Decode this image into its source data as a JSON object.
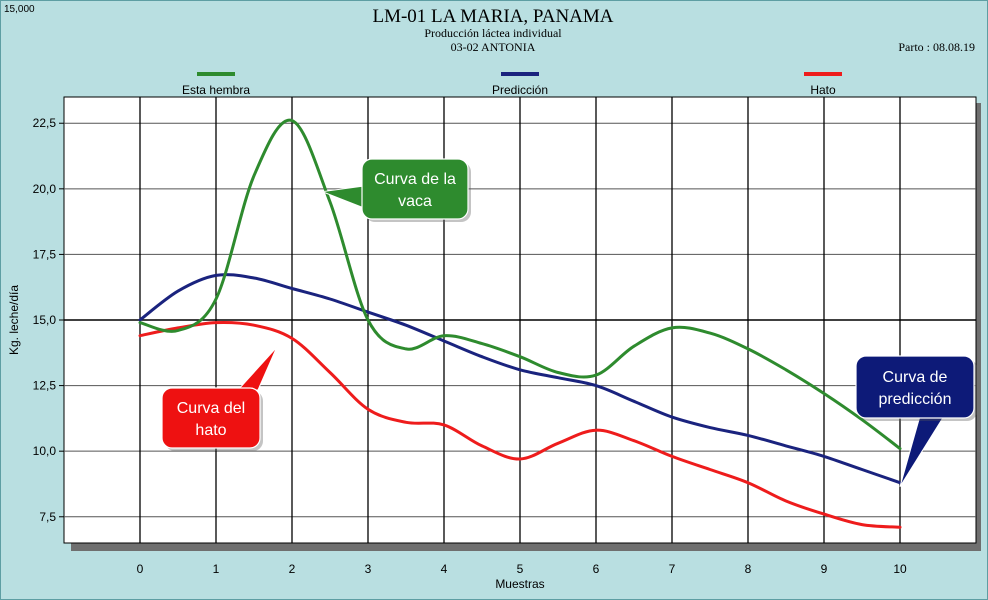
{
  "corner_value": "15,000",
  "title": "LM-01  LA MARIA, PANAMA",
  "subtitle": "Producción láctea individual",
  "animal": "03-02 ANTONIA",
  "parto": "Parto : 08.08.19",
  "chart_data": {
    "type": "line",
    "xlabel": "Muestras",
    "ylabel": "Kg. leche/día",
    "x": [
      0,
      1,
      2,
      3,
      4,
      5,
      6,
      7,
      8,
      9,
      10
    ],
    "xlim": [
      -1,
      11
    ],
    "ylim": [
      6.5,
      23.5
    ],
    "y_ticks": [
      7.5,
      10.0,
      12.5,
      15.0,
      17.5,
      20.0,
      22.5
    ],
    "y_tick_labels": [
      "7,5",
      "10,0",
      "12,5",
      "15,0",
      "17,5",
      "20,0",
      "22,5"
    ],
    "x_tick_labels": [
      "0",
      "1",
      "2",
      "3",
      "4",
      "5",
      "6",
      "7",
      "8",
      "9",
      "10"
    ],
    "grid": true,
    "legend_position": "top",
    "series": [
      {
        "name": "Esta hembra",
        "color": "#2e8b2e",
        "x": [
          0,
          0.5,
          1,
          1.5,
          2,
          2.5,
          3,
          3.5,
          4,
          4.5,
          5,
          5.5,
          6,
          6.5,
          7,
          7.5,
          8,
          8.5,
          9,
          9.5,
          10
        ],
        "values": [
          14.9,
          14.6,
          15.8,
          20.5,
          22.6,
          19.5,
          15.0,
          13.9,
          14.4,
          14.1,
          13.6,
          13.0,
          12.9,
          14.0,
          14.7,
          14.5,
          13.9,
          13.1,
          12.2,
          11.2,
          10.1
        ]
      },
      {
        "name": "Predicción",
        "color": "#1a237e",
        "x": [
          0,
          0.5,
          1,
          1.5,
          2,
          2.5,
          3,
          3.5,
          4,
          4.5,
          5,
          5.5,
          6,
          6.5,
          7,
          7.5,
          8,
          8.5,
          9,
          9.5,
          10
        ],
        "values": [
          15.0,
          16.1,
          16.7,
          16.6,
          16.2,
          15.8,
          15.3,
          14.8,
          14.2,
          13.6,
          13.1,
          12.8,
          12.5,
          11.9,
          11.3,
          10.9,
          10.6,
          10.2,
          9.8,
          9.3,
          8.8
        ]
      },
      {
        "name": "Hato",
        "color": "#ee1c1c",
        "x": [
          0,
          0.5,
          1,
          1.5,
          2,
          2.5,
          3,
          3.5,
          4,
          4.5,
          5,
          5.5,
          6,
          6.5,
          7,
          7.5,
          8,
          8.5,
          9,
          9.5,
          10
        ],
        "values": [
          14.4,
          14.7,
          14.9,
          14.8,
          14.3,
          13.0,
          11.6,
          11.1,
          11.0,
          10.2,
          9.7,
          10.3,
          10.8,
          10.4,
          9.8,
          9.3,
          8.8,
          8.1,
          7.6,
          7.2,
          7.1
        ]
      }
    ],
    "annotations": [
      {
        "text_lines": [
          "Curva de la",
          "vaca"
        ],
        "fill": "#2e8b2e",
        "target_series": 0,
        "target_x": 2.4
      },
      {
        "text_lines": [
          "Curva del",
          "hato"
        ],
        "fill": "#ee1111",
        "target_series": 2,
        "target_x": 1.8
      },
      {
        "text_lines": [
          "Curva de",
          "predicción"
        ],
        "fill": "#0d1a78",
        "target_series": 1,
        "target_x": 10
      }
    ]
  }
}
